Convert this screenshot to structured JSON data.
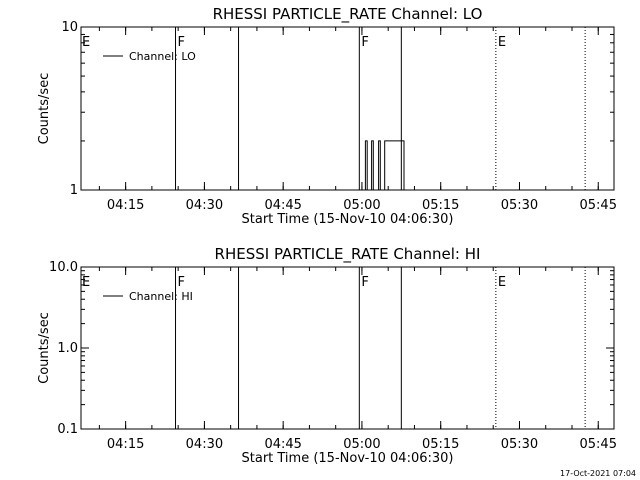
{
  "footer_timestamp": "17-Oct-2021 07:04",
  "chart_data": [
    {
      "type": "line",
      "title": "RHESSI PARTICLE_RATE Channel: LO",
      "xlabel": "Start Time (15-Nov-10 04:06:30)",
      "ylabel": "Counts/sec",
      "y_scale": "log",
      "ylim": [
        1,
        10
      ],
      "xlim": [
        "04:06:30",
        "05:48:00"
      ],
      "x_ticks": [
        "04:15",
        "04:30",
        "04:45",
        "05:00",
        "05:15",
        "05:30",
        "05:45"
      ],
      "y_ticks": [
        "1",
        "10"
      ],
      "legend": {
        "placement": "top-left",
        "entries": [
          "Channel: LO"
        ]
      },
      "markers": [
        {
          "time": "04:24:30",
          "label": "F",
          "style": "solid"
        },
        {
          "time": "04:36:30",
          "label": "",
          "style": "solid"
        },
        {
          "time": "04:59:30",
          "label": "F",
          "style": "solid"
        },
        {
          "time": "05:07:30",
          "label": "",
          "style": "solid"
        },
        {
          "time": "05:25:30",
          "label": "E",
          "style": "dotted"
        },
        {
          "time": "05:42:30",
          "label": "",
          "style": "dotted"
        }
      ],
      "edge_labels": [
        {
          "time": "04:06:30",
          "label": "E"
        }
      ],
      "series": [
        {
          "name": "Channel: LO",
          "points": [
            [
              "05:00:40",
              1
            ],
            [
              "05:00:40",
              2
            ],
            [
              "05:01:00",
              2
            ],
            [
              "05:01:00",
              1
            ],
            [
              "05:01:50",
              1
            ],
            [
              "05:01:50",
              2
            ],
            [
              "05:02:10",
              2
            ],
            [
              "05:02:10",
              1
            ],
            [
              "05:03:10",
              1
            ],
            [
              "05:03:10",
              2
            ],
            [
              "05:03:30",
              2
            ],
            [
              "05:03:30",
              1
            ],
            [
              "05:04:20",
              1
            ],
            [
              "05:04:20",
              2
            ],
            [
              "05:08:00",
              2
            ],
            [
              "05:08:00",
              1
            ]
          ]
        }
      ]
    },
    {
      "type": "line",
      "title": "RHESSI PARTICLE_RATE Channel: HI",
      "xlabel": "Start Time (15-Nov-10 04:06:30)",
      "ylabel": "Counts/sec",
      "y_scale": "log",
      "ylim": [
        0.1,
        10
      ],
      "xlim": [
        "04:06:30",
        "05:48:00"
      ],
      "x_ticks": [
        "04:15",
        "04:30",
        "04:45",
        "05:00",
        "05:15",
        "05:30",
        "05:45"
      ],
      "y_ticks": [
        "0.1",
        "1.0",
        "10.0"
      ],
      "legend": {
        "placement": "top-left",
        "entries": [
          "Channel: HI"
        ]
      },
      "markers": [
        {
          "time": "04:24:30",
          "label": "F",
          "style": "solid"
        },
        {
          "time": "04:36:30",
          "label": "",
          "style": "solid"
        },
        {
          "time": "04:59:30",
          "label": "F",
          "style": "solid"
        },
        {
          "time": "05:07:30",
          "label": "",
          "style": "solid"
        },
        {
          "time": "05:25:30",
          "label": "E",
          "style": "dotted"
        },
        {
          "time": "05:42:30",
          "label": "",
          "style": "dotted"
        }
      ],
      "edge_labels": [
        {
          "time": "04:06:30",
          "label": "E"
        }
      ],
      "series": [
        {
          "name": "Channel: HI",
          "points": []
        }
      ]
    }
  ]
}
